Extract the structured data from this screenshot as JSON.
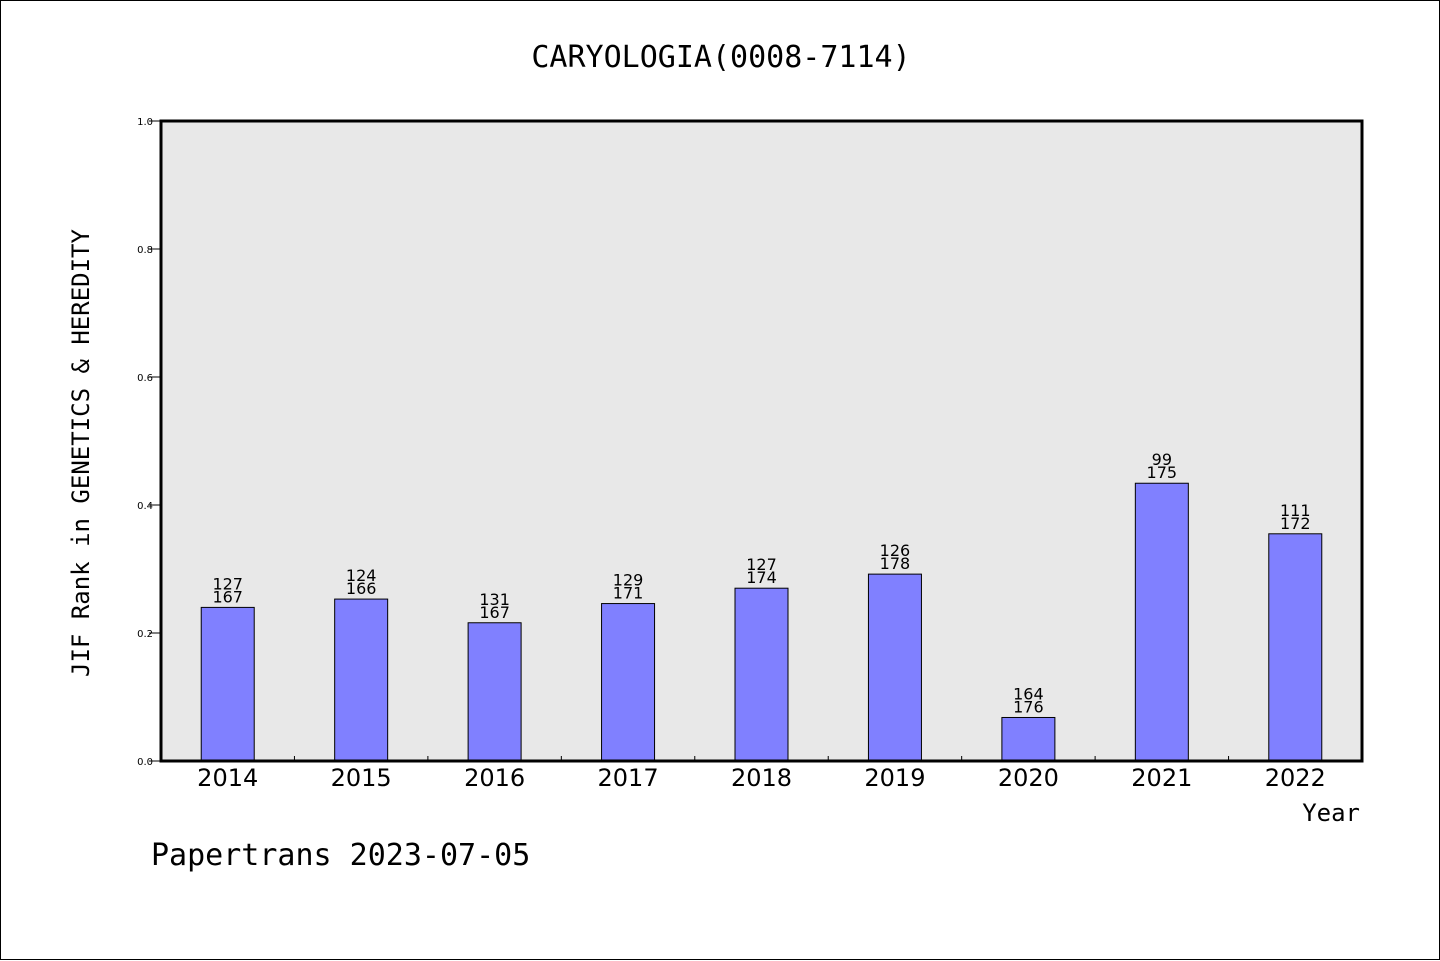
{
  "chart_data": {
    "type": "bar",
    "title": "CARYOLOGIA(0008-7114)",
    "xlabel": "Year",
    "ylabel": "JIF Rank in GENETICS & HEREDITY",
    "ylim": [
      0,
      1.0
    ],
    "yticks": [
      "0.0",
      "0.2",
      "0.4",
      "0.6",
      "0.8",
      "1.0"
    ],
    "grid": false,
    "plot_background": "#e8e8e8",
    "bar_color": "#8080ff",
    "categories": [
      "2014",
      "2015",
      "2016",
      "2017",
      "2018",
      "2019",
      "2020",
      "2021",
      "2022"
    ],
    "values": [
      0.24,
      0.253,
      0.216,
      0.246,
      0.27,
      0.292,
      0.068,
      0.434,
      0.355
    ],
    "rank_labels": [
      [
        "127",
        "167"
      ],
      [
        "124",
        "166"
      ],
      [
        "131",
        "167"
      ],
      [
        "129",
        "171"
      ],
      [
        "127",
        "174"
      ],
      [
        "126",
        "178"
      ],
      [
        "164",
        "176"
      ],
      [
        "99",
        "175"
      ],
      [
        "111",
        "172"
      ]
    ]
  },
  "footer": "Papertrans 2023-07-05"
}
